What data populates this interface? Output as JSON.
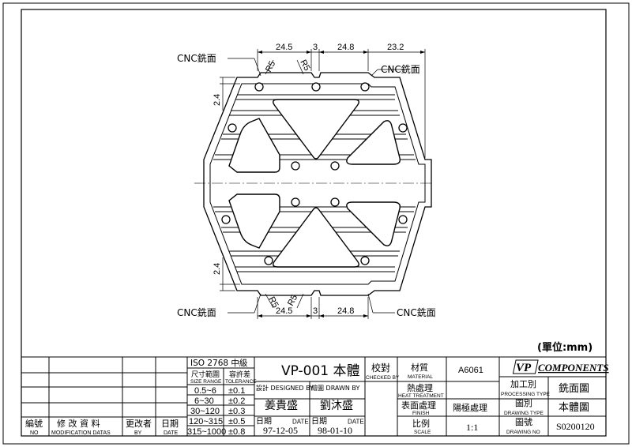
{
  "drawing": {
    "dims_top": [
      "24.5",
      "3",
      "24.8",
      "23.2"
    ],
    "dims_bottom": [
      "24.5",
      "3",
      "24.8"
    ],
    "dim_side_top": "2.4",
    "dim_side_bottom": "2.4",
    "radius_labels": [
      "R5",
      "R5",
      "R5",
      "R5"
    ],
    "cnc_notes": [
      "CNC銑面",
      "CNC銑面",
      "CNC銑面",
      "CNC銑面"
    ],
    "unit_note": "(單位:mm)"
  },
  "title_block": {
    "iso_title": "ISO 2768 中級",
    "size_range_zh": "尺寸範圍",
    "size_range_en": "SIZE RANGE",
    "tolerance_zh": "容許差",
    "tolerance_en": "TOLERANCE",
    "tolerance_rows": [
      {
        "range": "0.5~6",
        "tol": "±0.1"
      },
      {
        "range": "6~30",
        "tol": "±0.2"
      },
      {
        "range": "30~120",
        "tol": "±0.3"
      },
      {
        "range": "120~315",
        "tol": "±0.5"
      },
      {
        "range": "315~1000",
        "tol": "±0.8"
      }
    ],
    "part_name": "VP-001 本體",
    "designed_label": "設計 DESIGNED BY",
    "drawn_label": "繪圖 DRAWN BY",
    "designer": "姜貴盛",
    "drafter": "劉沐盛",
    "date_zh": "日期",
    "date_en": "DATE",
    "design_date": "97-12-05",
    "drawn_date": "98-01-10",
    "checked_zh": "校對",
    "checked_en": "CHECKED BY",
    "material_zh": "材質",
    "material_en": "MATERIAL",
    "material_value": "A6061",
    "heat_zh": "熱處理",
    "heat_en": "HEAT TREATMENT",
    "finish_zh": "表面處理",
    "finish_en": "FINISH",
    "finish_value": "陽極處理",
    "scale_zh": "比例",
    "scale_en": "SCALE",
    "scale_value": "1:1",
    "logo_text": "VP",
    "company": "COMPONENTS",
    "proc_zh": "加工別",
    "proc_en": "PROCESSING TYPE",
    "proc_value": "銑面圖",
    "dtype_zh": "圖別",
    "dtype_en": "DRAWING TYPE",
    "dtype_value": "本體圖",
    "dno_zh": "圖號",
    "dno_en": "DRAWING NO",
    "dno_value": "S0200120",
    "rev_headers": [
      {
        "zh": "編號",
        "en": "NO"
      },
      {
        "zh": "修 改 資 料",
        "en": "MODIFICATION DATAS"
      },
      {
        "zh": "更改者",
        "en": "BY"
      },
      {
        "zh": "日期",
        "en": "DATE"
      }
    ]
  }
}
